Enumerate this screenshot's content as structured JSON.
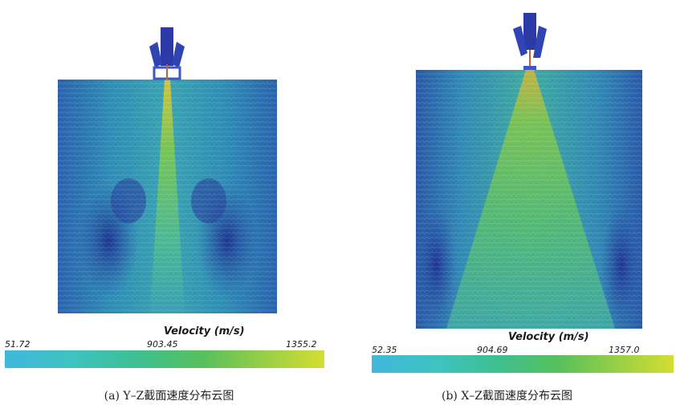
{
  "panels": [
    {
      "legend_title": "Velocity (m/s)",
      "ticks": [
        "51.72",
        "903.45",
        "1355.2"
      ],
      "caption": "(a) Y–Z截面速度分布云图"
    },
    {
      "legend_title": "Velocity (m/s)",
      "ticks": [
        "52.35",
        "904.69",
        "1357.0"
      ],
      "caption": "(b) X–Z截面速度分布云图"
    }
  ],
  "colors": {
    "domain_blue": "#2f6fb0",
    "vortex_blue": "#1e3f9a",
    "jet_green": "#6fc65a",
    "nozzle": "#2a3aa0"
  }
}
